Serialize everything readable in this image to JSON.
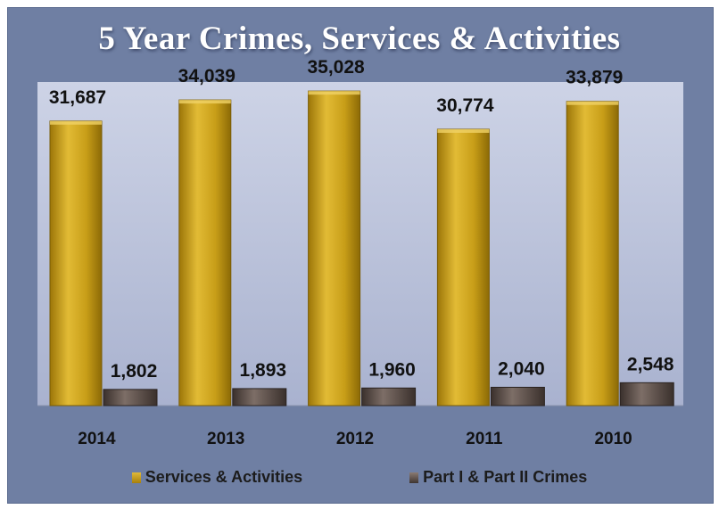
{
  "chart_data": {
    "type": "bar",
    "title": "5  Year Crimes, Services & Activities",
    "categories": [
      "2014",
      "2013",
      "2012",
      "2011",
      "2010"
    ],
    "series": [
      {
        "name": "Services & Activities",
        "values": [
          31687,
          34039,
          35028,
          30774,
          33879
        ],
        "labels": [
          "31,687",
          "34,039",
          "35,028",
          "30,774",
          "33,879"
        ]
      },
      {
        "name": "Part I & Part II Crimes",
        "values": [
          1802,
          1893,
          1960,
          2040,
          2548
        ],
        "labels": [
          "1,802",
          "1,893",
          "1,960",
          "2,040",
          "2,548"
        ]
      }
    ],
    "ylim": [
      0,
      40000
    ],
    "grid": false,
    "legend_position": "bottom",
    "colors": {
      "series1": "#c49a14",
      "series2": "#5a4c47",
      "plot_bg": "#b8c0d8",
      "frame_bg": "#6f7fa3"
    }
  }
}
